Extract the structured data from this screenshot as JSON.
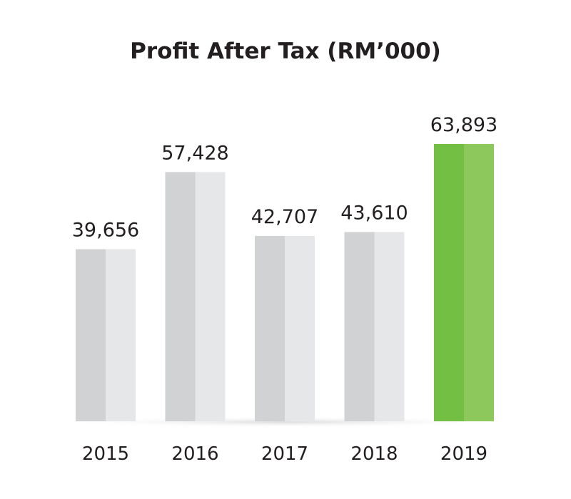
{
  "chart_data": {
    "type": "bar",
    "title": "Profit After Tax (RM’000)",
    "xlabel": "",
    "ylabel": "",
    "categories": [
      "2015",
      "2016",
      "2017",
      "2018",
      "2019"
    ],
    "values": [
      39656,
      57428,
      42707,
      43610,
      63893
    ],
    "value_labels": [
      "39,656",
      "57,428",
      "42,707",
      "43,610",
      "63,893"
    ],
    "ylim": [
      0,
      80000
    ],
    "grid": false,
    "legend": "none",
    "highlight_index": 4
  },
  "colors": {
    "bar_dark": "#d1d2d4",
    "bar_light": "#e6e7e8",
    "highlight_dark": "#72bf44",
    "highlight_light": "#8dc85d",
    "text": "#231f20",
    "baseline_shadow": "#e8e8e8"
  }
}
